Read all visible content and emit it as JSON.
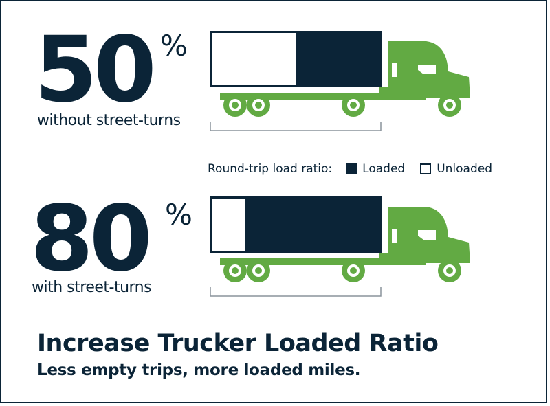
{
  "rows": [
    {
      "value": "50",
      "unit": "%",
      "caption": "without street-turns",
      "unloaded_fraction": 0.5
    },
    {
      "value": "80",
      "unit": "%",
      "caption": "with street-turns",
      "unloaded_fraction": 0.2
    }
  ],
  "legend": {
    "title": "Round-trip load ratio:",
    "loaded_label": "Loaded",
    "unloaded_label": "Unloaded"
  },
  "headline": "Increase Trucker Loaded Ratio",
  "subheadline": "Less empty trips, more loaded miles.",
  "colors": {
    "navy": "#0b2437",
    "green": "#62aa43",
    "white": "#ffffff"
  },
  "icons": {
    "truck": "semi-truck-icon"
  }
}
